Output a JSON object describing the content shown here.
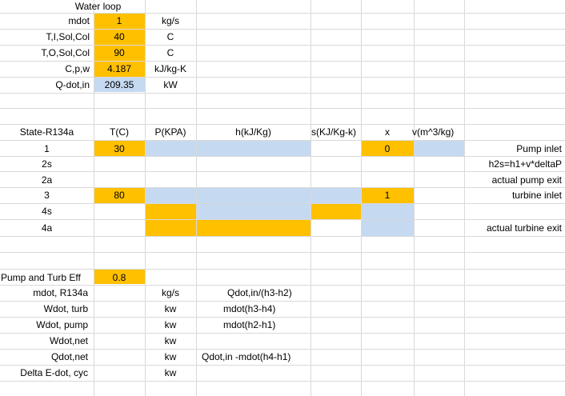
{
  "colors": {
    "orange": "#FFC000",
    "blue": "#C5D9F1",
    "grid": "#D9D9D9"
  },
  "water": {
    "title": "Water loop",
    "labels": [
      "mdot",
      "T,I,Sol,Col",
      "T,O,Sol,Col",
      "C,p,w",
      "Q-dot,in"
    ],
    "values": [
      "1",
      "40",
      "90",
      "4.187",
      "209.35"
    ],
    "units": [
      "kg/s",
      "C",
      "C",
      "kJ/kg-K",
      "kW"
    ]
  },
  "state_table": {
    "headers": [
      "State-R134a",
      "T(C)",
      "P(KPA)",
      "h(kJ/Kg)",
      "s(KJ/Kg-k)",
      "x",
      "v(m^3/kg)"
    ],
    "rows": [
      {
        "state": "1",
        "T": "30",
        "x": "0",
        "note": "Pump inlet"
      },
      {
        "state": "2s",
        "T": "",
        "x": "",
        "note": "h2s=h1+v*deltaP"
      },
      {
        "state": "2a",
        "T": "",
        "x": "",
        "note": "actual pump exit"
      },
      {
        "state": "3",
        "T": "80",
        "x": "1",
        "note": "turbine inlet"
      },
      {
        "state": "4s",
        "T": "",
        "x": "",
        "note": ""
      },
      {
        "state": "4a",
        "T": "",
        "x": "",
        "note": "actual turbine exit"
      }
    ]
  },
  "efficiency": {
    "label": "Pump and Turb Eff",
    "value": "0.8"
  },
  "results": [
    {
      "label": "mdot, R134a",
      "unit": "kg/s",
      "formula": "Qdot,in/(h3-h2)"
    },
    {
      "label": "Wdot, turb",
      "unit": "kw",
      "formula": "mdot(h3-h4)"
    },
    {
      "label": "Wdot, pump",
      "unit": "kw",
      "formula": "mdot(h2-h1)"
    },
    {
      "label": "Wdot,net",
      "unit": "kw",
      "formula": ""
    },
    {
      "label": "Qdot,net",
      "unit": "kw",
      "formula": "Qdot,in -mdot(h4-h1)"
    },
    {
      "label": "Delta E-dot, cyc",
      "unit": "kw",
      "formula": ""
    }
  ]
}
